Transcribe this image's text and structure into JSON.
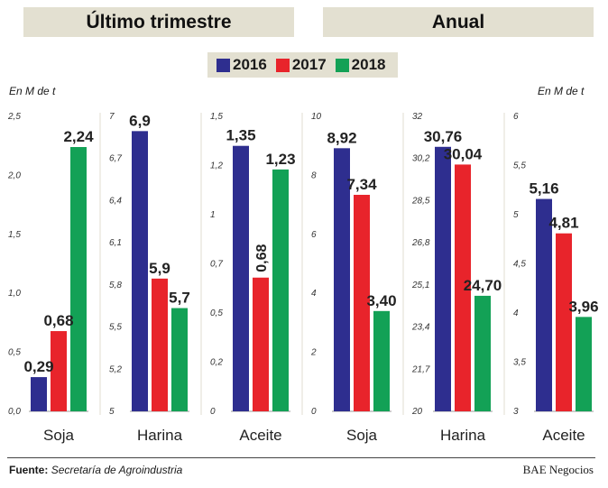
{
  "headers": {
    "left": "Último trimestre",
    "right": "Anual"
  },
  "legend": [
    {
      "label": "2016",
      "color": "#2e2e8f"
    },
    {
      "label": "2017",
      "color": "#e8242b"
    },
    {
      "label": "2018",
      "color": "#13a156"
    }
  ],
  "units": {
    "left": "En M de t",
    "right": "En M de t"
  },
  "chart_data": [
    {
      "type": "bar",
      "title": "Soja",
      "group": "Último trimestre",
      "categories": [
        "2016",
        "2017",
        "2018"
      ],
      "values": [
        0.29,
        0.68,
        2.24
      ],
      "value_labels": [
        "0,29",
        "0,68",
        "2,24"
      ],
      "ylim": [
        0,
        2.5
      ],
      "ticks": [
        "0,0",
        "0,5",
        "1,0",
        "1,5",
        "2,0",
        "2,5"
      ]
    },
    {
      "type": "bar",
      "title": "Harina",
      "group": "Último trimestre",
      "categories": [
        "2016",
        "2017",
        "2018"
      ],
      "values": [
        6.9,
        5.9,
        5.7
      ],
      "value_labels": [
        "6,9",
        "5,9",
        "5,7"
      ],
      "ylim": [
        5,
        7
      ],
      "ticks": [
        "5",
        "5,2",
        "5,5",
        "5,8",
        "6,1",
        "6,4",
        "6,7",
        "7"
      ]
    },
    {
      "type": "bar",
      "title": "Aceite",
      "group": "Último trimestre",
      "categories": [
        "2016",
        "2017",
        "2018"
      ],
      "values": [
        1.35,
        0.68,
        1.23
      ],
      "value_labels": [
        "1,35",
        "0,68",
        "1,23"
      ],
      "ylim": [
        0,
        1.5
      ],
      "ticks": [
        "0",
        "0,2",
        "0,5",
        "0,7",
        "1",
        "1,2",
        "1,5"
      ]
    },
    {
      "type": "bar",
      "title": "Soja",
      "group": "Anual",
      "categories": [
        "2016",
        "2017",
        "2018"
      ],
      "values": [
        8.92,
        7.34,
        3.4
      ],
      "value_labels": [
        "8,92",
        "7,34",
        "3,40"
      ],
      "ylim": [
        0,
        10
      ],
      "ticks": [
        "0",
        "2",
        "4",
        "6",
        "8",
        "10"
      ]
    },
    {
      "type": "bar",
      "title": "Harina",
      "group": "Anual",
      "categories": [
        "2016",
        "2017",
        "2018"
      ],
      "values": [
        30.76,
        30.04,
        24.7
      ],
      "value_labels": [
        "30,76",
        "30,04",
        "24,70"
      ],
      "ylim": [
        20,
        32
      ],
      "ticks": [
        "20",
        "21,7",
        "23,4",
        "25,1",
        "26,8",
        "28,5",
        "30,2",
        "32"
      ]
    },
    {
      "type": "bar",
      "title": "Aceite",
      "group": "Anual",
      "categories": [
        "2016",
        "2017",
        "2018"
      ],
      "values": [
        5.16,
        4.81,
        3.96
      ],
      "value_labels": [
        "5,16",
        "4,81",
        "3,96"
      ],
      "ylim": [
        3,
        6
      ],
      "ticks": [
        "3",
        "3,5",
        "4",
        "4,5",
        "5",
        "5,5",
        "6"
      ]
    }
  ],
  "footer": {
    "label": "Fuente:",
    "source": "Secretaría de Agroindustria",
    "credit": "BAE Negocios"
  }
}
